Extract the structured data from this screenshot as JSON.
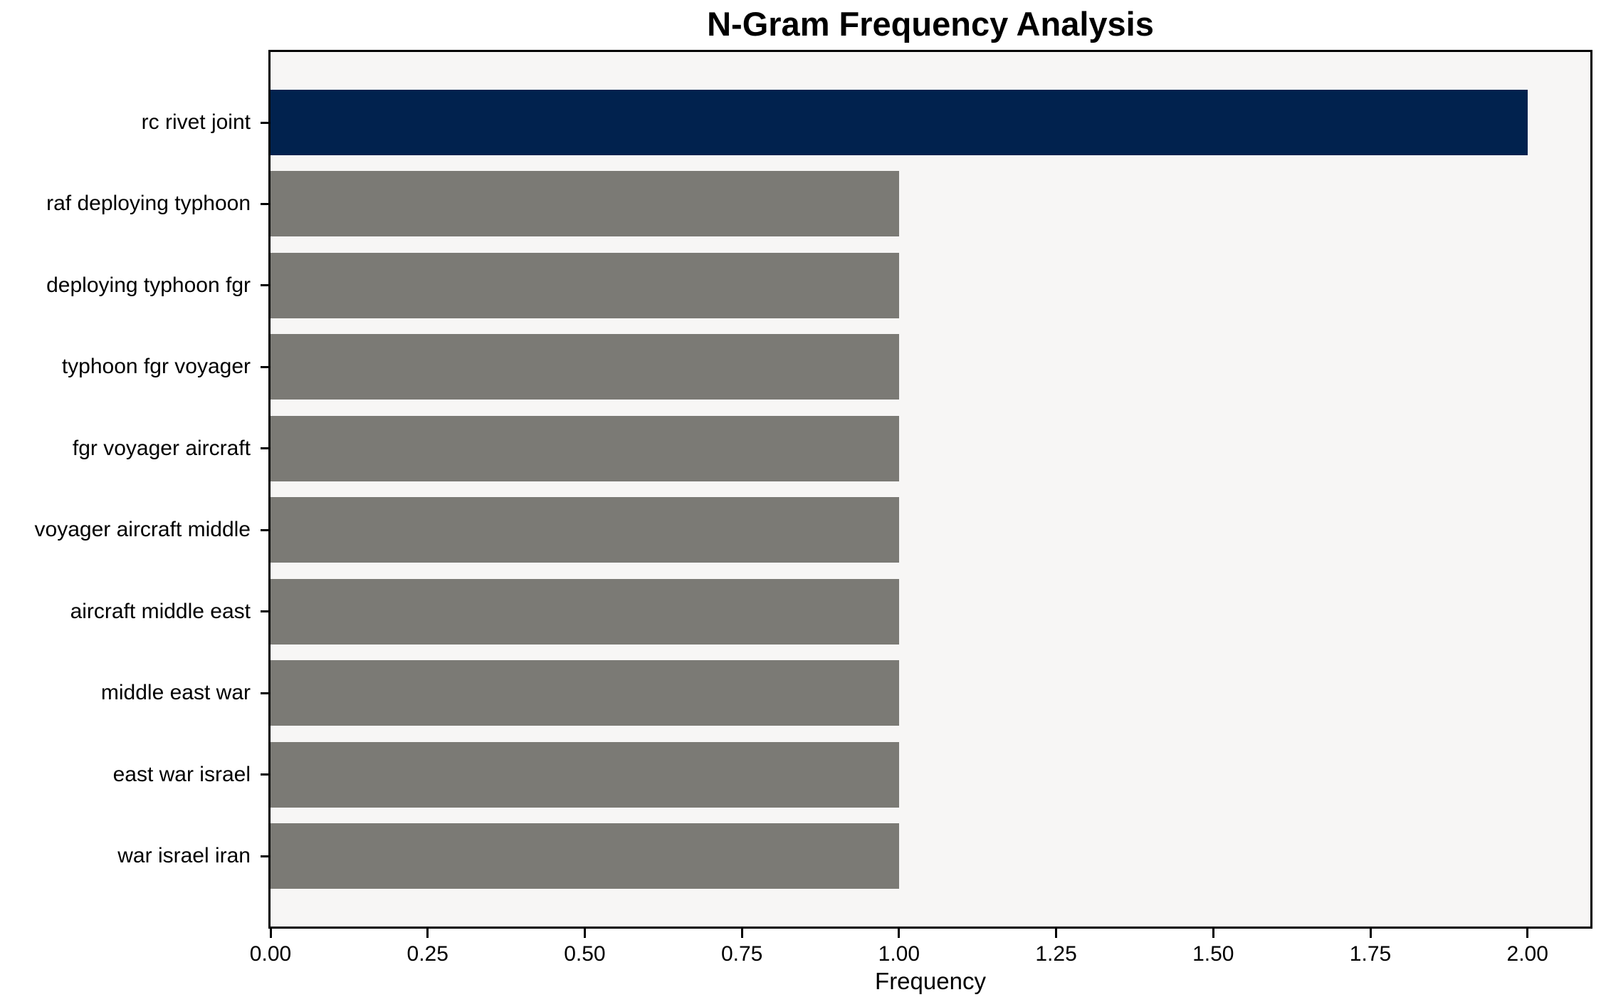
{
  "chart_data": {
    "type": "bar",
    "orientation": "horizontal",
    "title": "N-Gram Frequency Analysis",
    "xlabel": "Frequency",
    "ylabel": "",
    "categories": [
      "rc rivet joint",
      "raf deploying typhoon",
      "deploying typhoon fgr",
      "typhoon fgr voyager",
      "fgr voyager aircraft",
      "voyager aircraft middle",
      "aircraft middle east",
      "middle east war",
      "east war israel",
      "war israel iran"
    ],
    "values": [
      2,
      1,
      1,
      1,
      1,
      1,
      1,
      1,
      1,
      1
    ],
    "bar_colors": [
      "#01224e",
      "#7b7a75",
      "#7b7a75",
      "#7b7a75",
      "#7b7a75",
      "#7b7a75",
      "#7b7a75",
      "#7b7a75",
      "#7b7a75",
      "#7b7a75"
    ],
    "xlim": [
      0,
      2.1
    ],
    "xtick_values": [
      0,
      0.25,
      0.5,
      0.75,
      1,
      1.25,
      1.5,
      1.75,
      2
    ],
    "xtick_labels": [
      "0.00",
      "0.25",
      "0.50",
      "0.75",
      "1.00",
      "1.25",
      "1.50",
      "1.75",
      "2.00"
    ],
    "grid": false,
    "legend_position": "none",
    "colors": {
      "highlight_bar": "#01224e",
      "default_bar": "#7b7a75",
      "plot_background": "#f7f6f5",
      "figure_background": "#ffffff",
      "spine": "#000000",
      "text": "#000000"
    }
  }
}
